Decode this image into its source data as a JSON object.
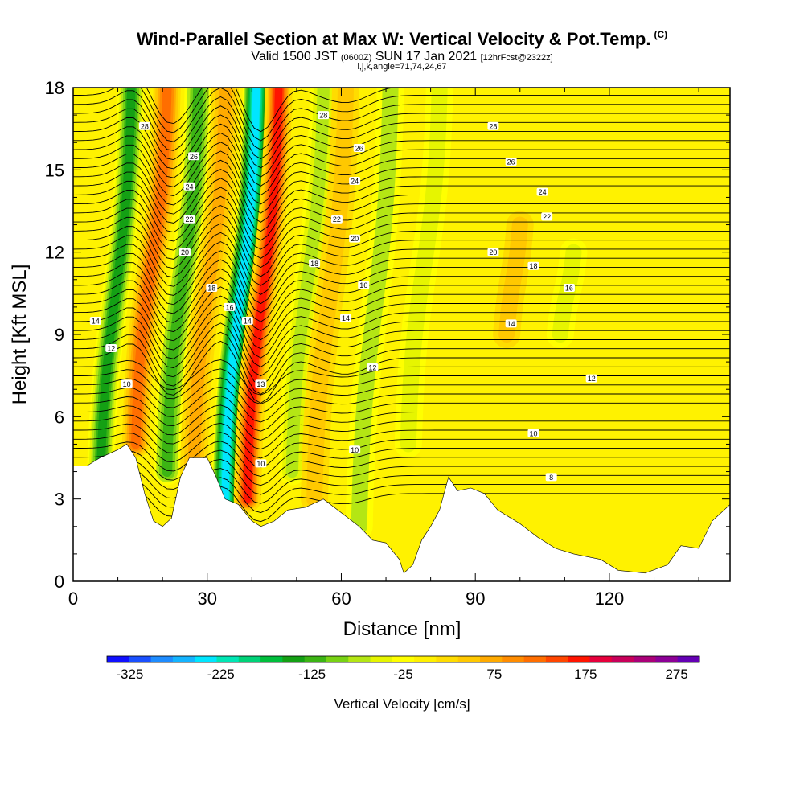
{
  "header": {
    "title": "Wind-Parallel Section at Max W: Vertical Velocity & Pot.Temp.",
    "title_units": "(C)",
    "subtitle_main": "Valid 1500 JST",
    "subtitle_z": "(0600Z)",
    "subtitle_date": "SUN 17 Jan 2021",
    "subtitle_fcst": "[12hrFcst@2322z]",
    "subtitle2": "i,j,k,angle=71,74,24,67"
  },
  "chart_data": {
    "type": "heatmap",
    "title": "Wind-Parallel Section at Max W: Vertical Velocity & Pot.Temp.",
    "xlabel": "Distance [nm]",
    "ylabel": "Height [Kft MSL]",
    "xlim": [
      0,
      147
    ],
    "ylim": [
      0,
      18
    ],
    "x_ticks": [
      "0",
      "30",
      "60",
      "90",
      "120"
    ],
    "y_ticks": [
      "0",
      "3",
      "6",
      "9",
      "12",
      "15",
      "18"
    ],
    "colorbar": {
      "label": "Vertical Velocity [cm/s]",
      "tick_labels": [
        "-325",
        "-225",
        "-125",
        "-25",
        "75",
        "175",
        "275"
      ],
      "bins": [
        -350,
        -325,
        -300,
        -275,
        -250,
        -225,
        -200,
        -175,
        -150,
        -125,
        -100,
        -75,
        -50,
        -25,
        0,
        25,
        50,
        75,
        100,
        125,
        150,
        175,
        200,
        225,
        250,
        275,
        300
      ],
      "colors": [
        "#1010ff",
        "#1a50ff",
        "#1e8cff",
        "#14b4ff",
        "#00e6ff",
        "#00e6b4",
        "#00d278",
        "#00be3c",
        "#14a014",
        "#3cb414",
        "#78d214",
        "#b4e614",
        "#e6f500",
        "#ffff00",
        "#fff000",
        "#ffdc00",
        "#ffc800",
        "#ffaa00",
        "#ff8c00",
        "#ff6e00",
        "#ff4600",
        "#ff1400",
        "#e6003c",
        "#c8005a",
        "#aa0078",
        "#8c0096",
        "#6400b4"
      ]
    },
    "updraft_downdraft_bands": [
      {
        "x_center": 13,
        "w": -140,
        "top": 18,
        "bottom": 3
      },
      {
        "x_center": 21,
        "w": 130,
        "top": 18,
        "bottom": 5
      },
      {
        "x_center": 28,
        "w": -110,
        "top": 18,
        "bottom": 4
      },
      {
        "x_center": 34,
        "w": 80,
        "top": 18,
        "bottom": 4
      },
      {
        "x_center": 41,
        "w": -230,
        "top": 18,
        "bottom": 3
      },
      {
        "x_center": 46,
        "w": 190,
        "top": 18,
        "bottom": 3
      },
      {
        "x_center": 56,
        "w": -70,
        "top": 18,
        "bottom": 4
      },
      {
        "x_center": 61,
        "w": 60,
        "top": 18,
        "bottom": 3
      },
      {
        "x_center": 71,
        "w": -60,
        "top": 18,
        "bottom": 2
      },
      {
        "x_center": 82,
        "w": -45,
        "top": 18,
        "bottom": 5
      },
      {
        "x_center": 100,
        "w": 55,
        "top": 13,
        "bottom": 9
      },
      {
        "x_center": 112,
        "w": -40,
        "top": 12,
        "bottom": 9
      }
    ],
    "terrain_height": [
      [
        0,
        4.2
      ],
      [
        3,
        4.2
      ],
      [
        6,
        4.5
      ],
      [
        10,
        4.8
      ],
      [
        12,
        5.0
      ],
      [
        14,
        4.5
      ],
      [
        16,
        3.2
      ],
      [
        18,
        2.2
      ],
      [
        20,
        2.0
      ],
      [
        22,
        2.3
      ],
      [
        24,
        3.8
      ],
      [
        26,
        4.5
      ],
      [
        30,
        4.5
      ],
      [
        32,
        3.8
      ],
      [
        34,
        3.0
      ],
      [
        37,
        2.8
      ],
      [
        40,
        2.2
      ],
      [
        42,
        2.0
      ],
      [
        45,
        2.2
      ],
      [
        48,
        2.6
      ],
      [
        52,
        2.7
      ],
      [
        56,
        3.0
      ],
      [
        60,
        2.5
      ],
      [
        64,
        2.0
      ],
      [
        67,
        1.5
      ],
      [
        70,
        1.4
      ],
      [
        73,
        0.8
      ],
      [
        74,
        0.3
      ],
      [
        76,
        0.6
      ],
      [
        78,
        1.5
      ],
      [
        80,
        2.0
      ],
      [
        82,
        2.6
      ],
      [
        84,
        3.8
      ],
      [
        86,
        3.3
      ],
      [
        89,
        3.4
      ],
      [
        92,
        3.2
      ],
      [
        95,
        2.6
      ],
      [
        100,
        2.1
      ],
      [
        104,
        1.6
      ],
      [
        108,
        1.2
      ],
      [
        112,
        1.0
      ],
      [
        118,
        0.8
      ],
      [
        122,
        0.4
      ],
      [
        128,
        0.3
      ],
      [
        133,
        0.6
      ],
      [
        136,
        1.3
      ],
      [
        140,
        1.2
      ],
      [
        143,
        2.2
      ],
      [
        147,
        2.8
      ]
    ],
    "theta_contour_labels": [
      "8",
      "10",
      "12",
      "14",
      "16",
      "18",
      "20",
      "22",
      "24",
      "26",
      "28"
    ],
    "theta_labels_on_chart": [
      {
        "text": "28",
        "x": 16,
        "y": 16.6
      },
      {
        "text": "26",
        "x": 27,
        "y": 15.5
      },
      {
        "text": "24",
        "x": 26,
        "y": 14.4
      },
      {
        "text": "22",
        "x": 26,
        "y": 13.2
      },
      {
        "text": "20",
        "x": 25,
        "y": 12.0
      },
      {
        "text": "18",
        "x": 31,
        "y": 10.7
      },
      {
        "text": "16",
        "x": 35,
        "y": 10.0
      },
      {
        "text": "14",
        "x": 39,
        "y": 9.5
      },
      {
        "text": "13",
        "x": 42,
        "y": 7.2
      },
      {
        "text": "10",
        "x": 42,
        "y": 4.3
      },
      {
        "text": "14",
        "x": 5,
        "y": 9.5
      },
      {
        "text": "12",
        "x": 8.5,
        "y": 8.5
      },
      {
        "text": "10",
        "x": 12,
        "y": 7.2
      },
      {
        "text": "28",
        "x": 56,
        "y": 17.0
      },
      {
        "text": "26",
        "x": 64,
        "y": 15.8
      },
      {
        "text": "24",
        "x": 63,
        "y": 14.6
      },
      {
        "text": "22",
        "x": 59,
        "y": 13.2
      },
      {
        "text": "20",
        "x": 63,
        "y": 12.5
      },
      {
        "text": "18",
        "x": 54,
        "y": 11.6
      },
      {
        "text": "16",
        "x": 65,
        "y": 10.8
      },
      {
        "text": "14",
        "x": 61,
        "y": 9.6
      },
      {
        "text": "12",
        "x": 67,
        "y": 7.8
      },
      {
        "text": "10",
        "x": 63,
        "y": 4.8
      },
      {
        "text": "28",
        "x": 94,
        "y": 16.6
      },
      {
        "text": "26",
        "x": 98,
        "y": 15.3
      },
      {
        "text": "24",
        "x": 105,
        "y": 14.2
      },
      {
        "text": "22",
        "x": 106,
        "y": 13.3
      },
      {
        "text": "20",
        "x": 94,
        "y": 12.0
      },
      {
        "text": "18",
        "x": 103,
        "y": 11.5
      },
      {
        "text": "16",
        "x": 111,
        "y": 10.7
      },
      {
        "text": "14",
        "x": 98,
        "y": 9.4
      },
      {
        "text": "12",
        "x": 116,
        "y": 7.4
      },
      {
        "text": "10",
        "x": 103,
        "y": 5.4
      },
      {
        "text": "8",
        "x": 107,
        "y": 3.8
      }
    ]
  }
}
